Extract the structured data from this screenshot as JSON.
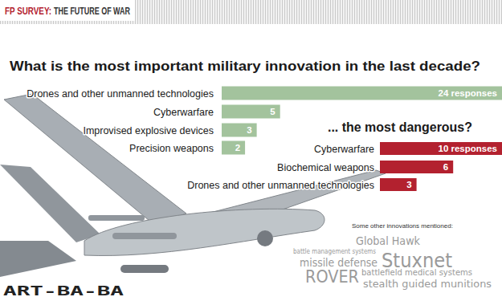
{
  "header": {
    "label": "FP SURVEY:",
    "title": "THE FUTURE OF WAR"
  },
  "chart_data": [
    {
      "type": "bar",
      "title": "What is the most important military innovation in the last decade?",
      "orientation": "horizontal",
      "categories": [
        "Drones and other unmanned technologies",
        "Cyberwarfare",
        "Improvised explosive devices",
        "Precision weapons"
      ],
      "values": [
        24,
        5,
        3,
        2
      ],
      "value_labels": [
        "24 responses",
        "5",
        "3",
        "2"
      ],
      "data_labels": true,
      "color": "#a3c39d",
      "xlim": [
        0,
        24
      ],
      "tick_labels": false,
      "grid": false
    },
    {
      "type": "bar",
      "title": "... the most dangerous?",
      "orientation": "horizontal",
      "categories": [
        "Cyberwarfare",
        "Biochemical weapons",
        "Drones and other unmanned technologies"
      ],
      "values": [
        10,
        6,
        3
      ],
      "value_labels": [
        "10 responses",
        "6",
        "3"
      ],
      "data_labels": true,
      "color": "#b3212f",
      "xlim": [
        0,
        10
      ],
      "tick_labels": false,
      "grid": false
    }
  ],
  "word_cloud": {
    "title": "Some other innovations mentioned:",
    "words": [
      "Global Hawk",
      "battle management systems",
      "missile defense",
      "Stuxnet",
      "battlefield medical systems",
      "ROVER",
      "stealth guided munitions"
    ]
  },
  "watermark": "ART-BA-BA"
}
